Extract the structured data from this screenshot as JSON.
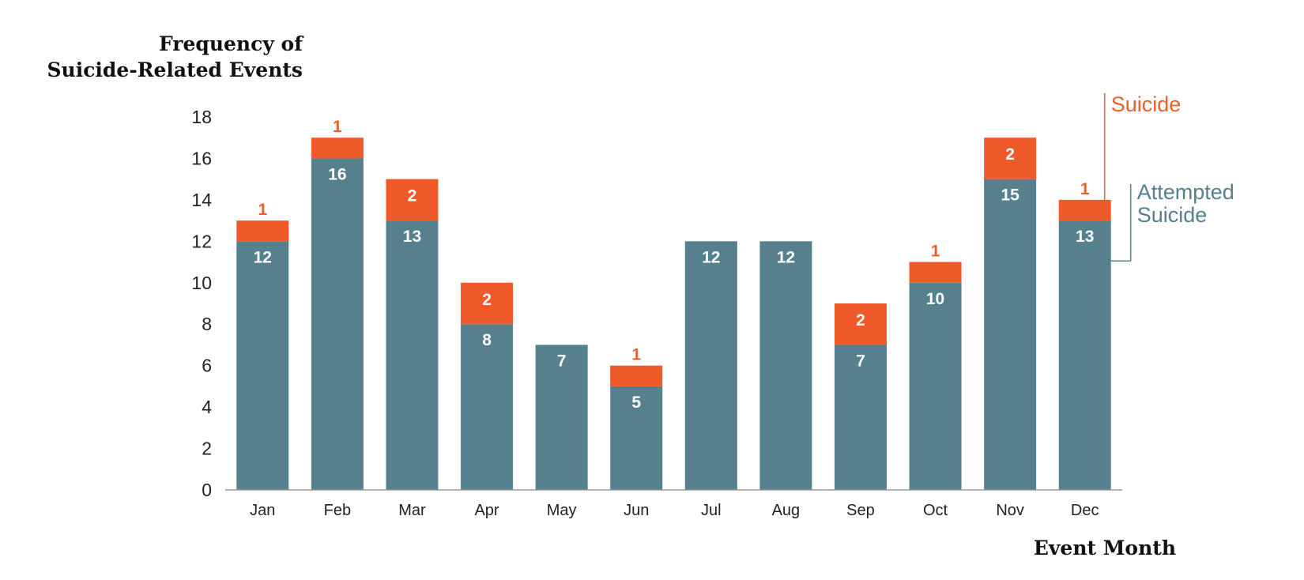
{
  "chart_data": {
    "type": "bar",
    "stacked": true,
    "ylabel_lines": [
      "Frequency of",
      "Suicide-Related Events"
    ],
    "xlabel": "Event Month",
    "categories": [
      "Jan",
      "Feb",
      "Mar",
      "Apr",
      "May",
      "Jun",
      "Jul",
      "Aug",
      "Sep",
      "Oct",
      "Nov",
      "Dec"
    ],
    "yticks": [
      0,
      2,
      4,
      6,
      8,
      10,
      12,
      14,
      16,
      18
    ],
    "ylim": [
      0,
      18
    ],
    "grid": false,
    "legend_placement": "right",
    "series": [
      {
        "name": "Attempted Suicide",
        "legend_lines": [
          "Attempted",
          "Suicide"
        ],
        "color": "#55818c",
        "values": [
          12,
          16,
          13,
          8,
          7,
          5,
          12,
          12,
          7,
          10,
          15,
          13
        ]
      },
      {
        "name": "Suicide",
        "legend_lines": [
          "Suicide"
        ],
        "color": "#f05a28",
        "label_color": "#e8612c",
        "values": [
          1,
          1,
          2,
          2,
          0,
          1,
          0,
          0,
          2,
          1,
          2,
          1
        ]
      }
    ]
  }
}
